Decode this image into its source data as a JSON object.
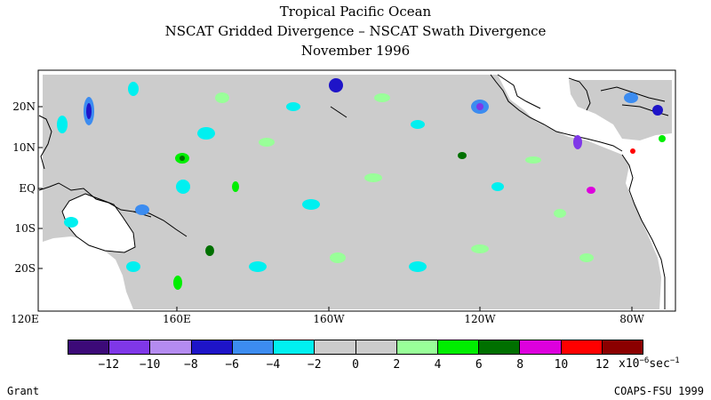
{
  "title": {
    "line1": "Tropical Pacific Ocean",
    "line2": "NSCAT Gridded Divergence – NSCAT Swath Divergence",
    "line3": "November 1996"
  },
  "map": {
    "lat_labels": [
      "20N",
      "10N",
      "EQ",
      "10S",
      "20S"
    ],
    "lon_labels": [
      "120E",
      "160E",
      "160W",
      "120W",
      "80W"
    ]
  },
  "colorbar": {
    "colors": [
      "#3c0a78",
      "#7f37e8",
      "#b48bf0",
      "#1e14c8",
      "#3c8cf0",
      "#00f0f0",
      "#cccccc",
      "#cccccc",
      "#99ff99",
      "#00ee00",
      "#007000",
      "#dd00dd",
      "#ff0000",
      "#8b0000"
    ],
    "labels": [
      "−12",
      "−10",
      "−8",
      "−6",
      "−4",
      "−2",
      "0",
      "2",
      "4",
      "6",
      "8",
      "10",
      "12"
    ],
    "units_base": "x10",
    "units_exp": "−6",
    "units_tail": "sec",
    "units_tail_exp": "−1"
  },
  "footer": {
    "left": "Grant",
    "right": "COAPS-FSU 1999"
  }
}
